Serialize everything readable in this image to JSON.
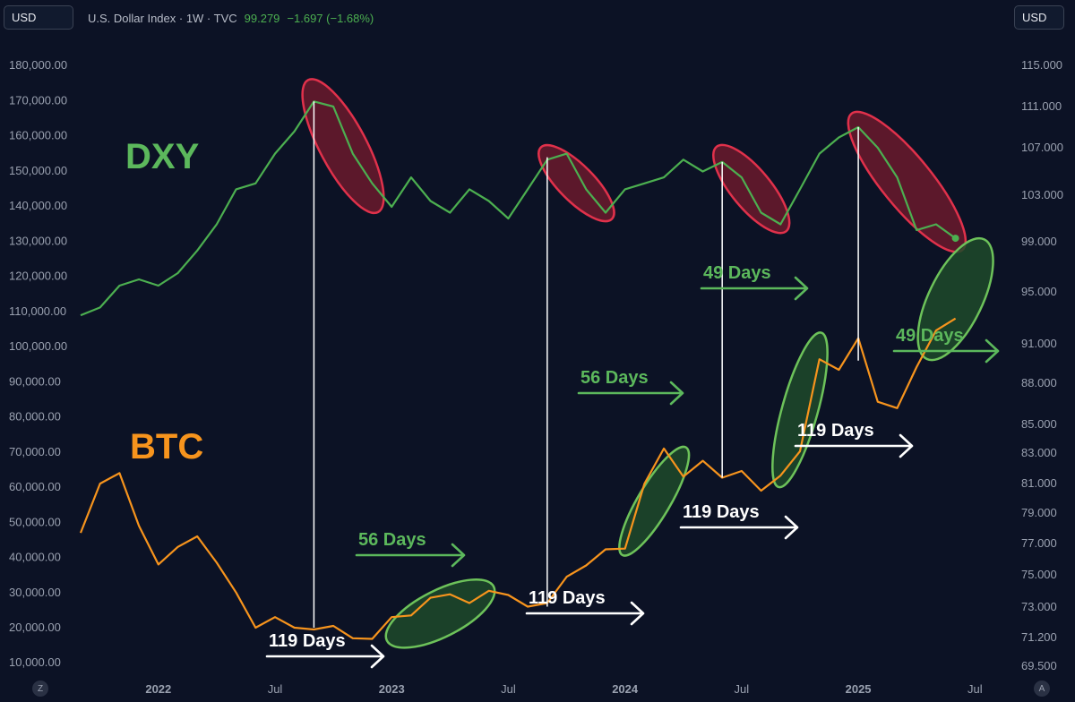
{
  "header": {
    "currency_left": "USD",
    "currency_right": "USD",
    "symbol": "U.S. Dollar Index · 1W · TVC",
    "price": "99.279",
    "change": "−1.697 (−1.68%)"
  },
  "corners": {
    "left": "Z",
    "right": "A"
  },
  "colors": {
    "background": "#0c1225",
    "dxy": "#4caf50",
    "btc": "#f7941d",
    "red_fill": "#6b1a2d",
    "red_stroke": "#e0314b",
    "green_fill": "#1f4a2a",
    "green_stroke": "#6dc25a",
    "annotation_green": "#5cb85c",
    "annotation_white": "#ffffff"
  },
  "chart_data": {
    "type": "line",
    "labels": {
      "dxy": "DXY",
      "btc": "BTC"
    },
    "x_axis": {
      "start": "2021-09",
      "end": "2025-08",
      "ticks": [
        "2022",
        "Jul",
        "2023",
        "Jul",
        "2024",
        "Jul",
        "2025",
        "Jul"
      ],
      "tick_dates": [
        "2022-01",
        "2022-07",
        "2023-01",
        "2023-07",
        "2024-01",
        "2024-07",
        "2025-01",
        "2025-07"
      ]
    },
    "left_axis": {
      "ylim": [
        7000,
        190000
      ],
      "ticks": [
        "10,000.00",
        "20,000.00",
        "30,000.00",
        "40,000.00",
        "50,000.00",
        "60,000.00",
        "70,000.00",
        "80,000.00",
        "90,000.00",
        "100,000.00",
        "110,000.00",
        "120,000.00",
        "130,000.00",
        "140,000.00",
        "150,000.00",
        "160,000.00",
        "170,000.00",
        "180,000.00"
      ]
    },
    "right_axis": {
      "ticks": [
        "69.500",
        "71.200",
        "73.000",
        "75.000",
        "77.000",
        "79.000",
        "81.000",
        "83.000",
        "85.000",
        "88.000",
        "91.000",
        "95.000",
        "99.000",
        "103.000",
        "107.000",
        "111.000",
        "115.000"
      ]
    },
    "series": [
      {
        "name": "DXY",
        "points": [
          [
            "2021-09",
            93.2
          ],
          [
            "2021-10",
            93.8
          ],
          [
            "2021-11",
            95.5
          ],
          [
            "2021-12",
            96.0
          ],
          [
            "2022-01",
            95.5
          ],
          [
            "2022-02",
            96.5
          ],
          [
            "2022-03",
            98.3
          ],
          [
            "2022-04",
            100.5
          ],
          [
            "2022-05",
            103.5
          ],
          [
            "2022-06",
            104.0
          ],
          [
            "2022-07",
            106.5
          ],
          [
            "2022-08",
            108.6
          ],
          [
            "2022-09",
            111.5
          ],
          [
            "2022-10",
            111.0
          ],
          [
            "2022-11",
            106.5
          ],
          [
            "2022-12",
            104.0
          ],
          [
            "2023-01",
            102.0
          ],
          [
            "2023-02",
            104.5
          ],
          [
            "2023-03",
            102.5
          ],
          [
            "2023-04",
            101.5
          ],
          [
            "2023-05",
            103.5
          ],
          [
            "2023-06",
            102.5
          ],
          [
            "2023-07",
            101.0
          ],
          [
            "2023-08",
            103.5
          ],
          [
            "2023-09",
            106.0
          ],
          [
            "2023-10",
            106.5
          ],
          [
            "2023-11",
            103.5
          ],
          [
            "2023-12",
            101.5
          ],
          [
            "2024-01",
            103.5
          ],
          [
            "2024-02",
            104.0
          ],
          [
            "2024-03",
            104.5
          ],
          [
            "2024-04",
            106.0
          ],
          [
            "2024-05",
            105.0
          ],
          [
            "2024-06",
            105.8
          ],
          [
            "2024-07",
            104.5
          ],
          [
            "2024-08",
            101.5
          ],
          [
            "2024-09",
            100.5
          ],
          [
            "2024-10",
            103.5
          ],
          [
            "2024-11",
            106.5
          ],
          [
            "2024-12",
            108.0
          ],
          [
            "2025-01",
            109.0
          ],
          [
            "2025-02",
            107.0
          ],
          [
            "2025-03",
            104.5
          ],
          [
            "2025-04",
            100.0
          ],
          [
            "2025-05",
            100.5
          ],
          [
            "2025-06",
            99.3
          ]
        ]
      },
      {
        "name": "BTC",
        "points": [
          [
            "2021-09",
            47000
          ],
          [
            "2021-10",
            61000
          ],
          [
            "2021-11",
            64000
          ],
          [
            "2021-12",
            49000
          ],
          [
            "2022-01",
            38000
          ],
          [
            "2022-02",
            43000
          ],
          [
            "2022-03",
            46000
          ],
          [
            "2022-04",
            38500
          ],
          [
            "2022-05",
            30000
          ],
          [
            "2022-06",
            20000
          ],
          [
            "2022-07",
            23000
          ],
          [
            "2022-08",
            20000
          ],
          [
            "2022-09",
            19500
          ],
          [
            "2022-10",
            20500
          ],
          [
            "2022-11",
            17000
          ],
          [
            "2022-12",
            16800
          ],
          [
            "2023-01",
            23000
          ],
          [
            "2023-02",
            23500
          ],
          [
            "2023-03",
            28500
          ],
          [
            "2023-04",
            29500
          ],
          [
            "2023-05",
            27000
          ],
          [
            "2023-06",
            30500
          ],
          [
            "2023-07",
            29300
          ],
          [
            "2023-08",
            26000
          ],
          [
            "2023-09",
            27000
          ],
          [
            "2023-10",
            34500
          ],
          [
            "2023-11",
            37700
          ],
          [
            "2023-12",
            42300
          ],
          [
            "2024-01",
            42500
          ],
          [
            "2024-02",
            61000
          ],
          [
            "2024-03",
            71000
          ],
          [
            "2024-04",
            63000
          ],
          [
            "2024-05",
            67500
          ],
          [
            "2024-06",
            62700
          ],
          [
            "2024-07",
            64600
          ],
          [
            "2024-08",
            59000
          ],
          [
            "2024-09",
            63300
          ],
          [
            "2024-10",
            70200
          ],
          [
            "2024-11",
            96400
          ],
          [
            "2024-12",
            93400
          ],
          [
            "2025-01",
            102400
          ],
          [
            "2025-02",
            84300
          ],
          [
            "2025-03",
            82500
          ],
          [
            "2025-04",
            94200
          ],
          [
            "2025-05",
            104600
          ],
          [
            "2025-06",
            108000
          ]
        ]
      }
    ],
    "annotations": {
      "dxy_label": "DXY",
      "btc_label": "BTC",
      "day_labels": [
        "119 Days",
        "56 Days",
        "119 Days",
        "56 Days",
        "119 Days",
        "49 Days",
        "119 Days",
        "49 Days"
      ]
    }
  }
}
